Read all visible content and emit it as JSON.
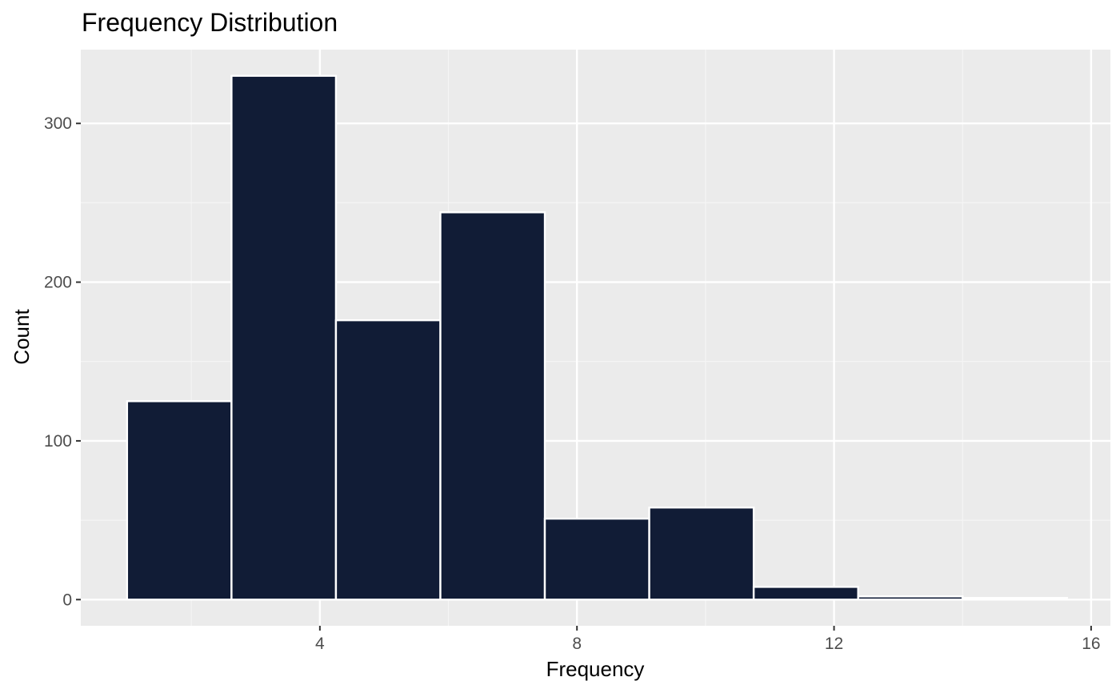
{
  "chart_data": {
    "type": "bar",
    "title": "Frequency  Distribution",
    "xlabel": "Frequency",
    "ylabel": "Count",
    "bins": [
      {
        "x0": 1.0,
        "x1": 2.625,
        "count": 125
      },
      {
        "x0": 2.625,
        "x1": 4.25,
        "count": 330
      },
      {
        "x0": 4.25,
        "x1": 5.875,
        "count": 176
      },
      {
        "x0": 5.875,
        "x1": 7.5,
        "count": 244
      },
      {
        "x0": 7.5,
        "x1": 9.125,
        "count": 51
      },
      {
        "x0": 9.125,
        "x1": 10.75,
        "count": 58
      },
      {
        "x0": 10.75,
        "x1": 12.375,
        "count": 8
      },
      {
        "x0": 12.375,
        "x1": 14.0,
        "count": 2
      },
      {
        "x0": 14.0,
        "x1": 15.625,
        "count": 1
      }
    ],
    "xlim": [
      0.28,
      16.3
    ],
    "ylim": [
      -16.5,
      346.5
    ],
    "x_ticks": [
      4,
      8,
      12,
      16
    ],
    "y_ticks": [
      0,
      100,
      200,
      300
    ],
    "x_minor_ticks": [
      2,
      6,
      10,
      14
    ],
    "y_minor_ticks": [
      50,
      150,
      250
    ],
    "grid": true,
    "colors": {
      "bar_fill": "#111c36",
      "bar_stroke": "#ffffff",
      "panel_background": "#ebebeb",
      "grid_major": "#ffffff",
      "grid_minor": "#f5f5f5"
    }
  }
}
